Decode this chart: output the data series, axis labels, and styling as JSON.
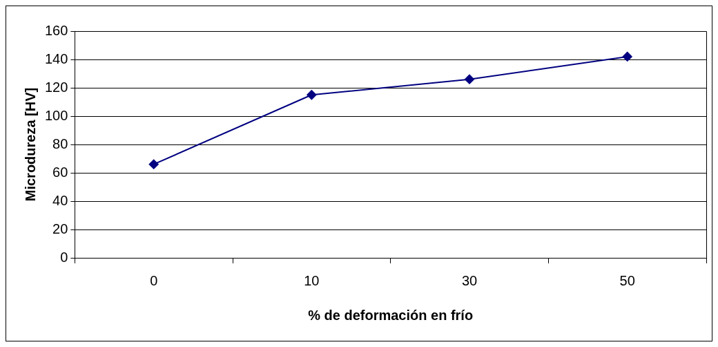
{
  "chart_data": {
    "type": "line",
    "xlabel": "% de deformación en frío",
    "ylabel": "Microdureza [HV]",
    "categories": [
      "0",
      "10",
      "30",
      "50"
    ],
    "series": [
      {
        "color": "#000080",
        "values": [
          66,
          115,
          126,
          142
        ]
      }
    ],
    "ylim": [
      0,
      160
    ],
    "yticks": [
      0,
      20,
      40,
      60,
      80,
      100,
      120,
      140,
      160
    ],
    "grid": "y",
    "legend": false,
    "marker": "diamond",
    "line_style": "solid"
  }
}
